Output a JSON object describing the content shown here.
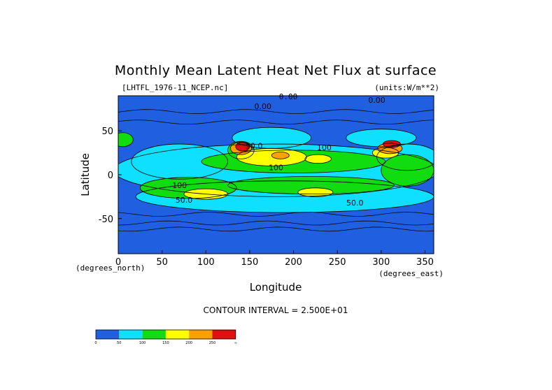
{
  "chart_data": {
    "type": "heatmap",
    "title": "Monthly Mean Latent Heat Net Flux at surface",
    "file_label": "[LHTFL_1976-11_NCEP.nc]",
    "units_label": "(units:W/m**2)",
    "top_contour_label": "0.00",
    "xlabel": "Longitude",
    "ylabel": "Latitude",
    "x_unit_label": "(degrees_east)",
    "y_unit_label": "(degrees_north)",
    "xlim": [
      0,
      360
    ],
    "ylim": [
      -90,
      90
    ],
    "x_ticks": [
      0,
      50,
      100,
      150,
      200,
      250,
      300,
      350
    ],
    "y_ticks": [
      -50,
      0,
      50
    ],
    "contour_interval_text": "CONTOUR INTERVAL = 2.500E+01",
    "colorbar": {
      "colors": [
        "#1f5fe0",
        "#10e0ff",
        "#10dc10",
        "#ffff00",
        "#ffa000",
        "#e01010"
      ],
      "labels": [
        "0",
        "50",
        "100",
        "150",
        "200",
        "250",
        "∞"
      ]
    },
    "contour_labels": [
      {
        "text": "0.00",
        "lon": 165,
        "lat": 75
      },
      {
        "text": "0.00",
        "lon": 295,
        "lat": 82
      },
      {
        "text": "50.0",
        "lon": 155,
        "lat": 30
      },
      {
        "text": "100",
        "lon": 235,
        "lat": 28
      },
      {
        "text": "100",
        "lon": 70,
        "lat": -15
      },
      {
        "text": "100",
        "lon": 180,
        "lat": 5
      },
      {
        "text": "50.0",
        "lon": 75,
        "lat": -32
      },
      {
        "text": "50.0",
        "lon": 270,
        "lat": -35
      }
    ],
    "fields": [
      {
        "level": 1,
        "lon": 180,
        "lat": 5,
        "rx": 185,
        "ry": 30
      },
      {
        "level": 1,
        "lon": 190,
        "lat": -25,
        "rx": 170,
        "ry": 18
      },
      {
        "level": 1,
        "lon": 70,
        "lat": 15,
        "rx": 55,
        "ry": 20
      },
      {
        "level": 1,
        "lon": 330,
        "lat": 20,
        "rx": 35,
        "ry": 15
      },
      {
        "level": 1,
        "lon": 175,
        "lat": 42,
        "rx": 45,
        "ry": 12
      },
      {
        "level": 1,
        "lon": 300,
        "lat": 42,
        "rx": 40,
        "ry": 10
      },
      {
        "level": 2,
        "lon": 200,
        "lat": 15,
        "rx": 105,
        "ry": 13
      },
      {
        "level": 2,
        "lon": 220,
        "lat": -12,
        "rx": 95,
        "ry": 10
      },
      {
        "level": 2,
        "lon": 80,
        "lat": -15,
        "rx": 55,
        "ry": 12
      },
      {
        "level": 2,
        "lon": 330,
        "lat": 5,
        "rx": 30,
        "ry": 18
      },
      {
        "level": 2,
        "lon": 140,
        "lat": 28,
        "rx": 15,
        "ry": 10
      },
      {
        "level": 2,
        "lon": 5,
        "lat": 40,
        "rx": 12,
        "ry": 8
      },
      {
        "level": 3,
        "lon": 175,
        "lat": 20,
        "rx": 40,
        "ry": 10
      },
      {
        "level": 3,
        "lon": 100,
        "lat": -22,
        "rx": 25,
        "ry": 6
      },
      {
        "level": 3,
        "lon": 225,
        "lat": -20,
        "rx": 20,
        "ry": 5
      },
      {
        "level": 3,
        "lon": 228,
        "lat": 18,
        "rx": 15,
        "ry": 5
      },
      {
        "level": 3,
        "lon": 305,
        "lat": 25,
        "rx": 15,
        "ry": 6
      },
      {
        "level": 4,
        "lon": 185,
        "lat": 22,
        "rx": 10,
        "ry": 4
      },
      {
        "level": 4,
        "lon": 140,
        "lat": 30,
        "rx": 12,
        "ry": 7
      },
      {
        "level": 4,
        "lon": 310,
        "lat": 30,
        "rx": 14,
        "ry": 6
      },
      {
        "level": 5,
        "lon": 142,
        "lat": 32,
        "rx": 8,
        "ry": 5
      },
      {
        "level": 5,
        "lon": 312,
        "lat": 35,
        "rx": 10,
        "ry": 4
      }
    ]
  }
}
